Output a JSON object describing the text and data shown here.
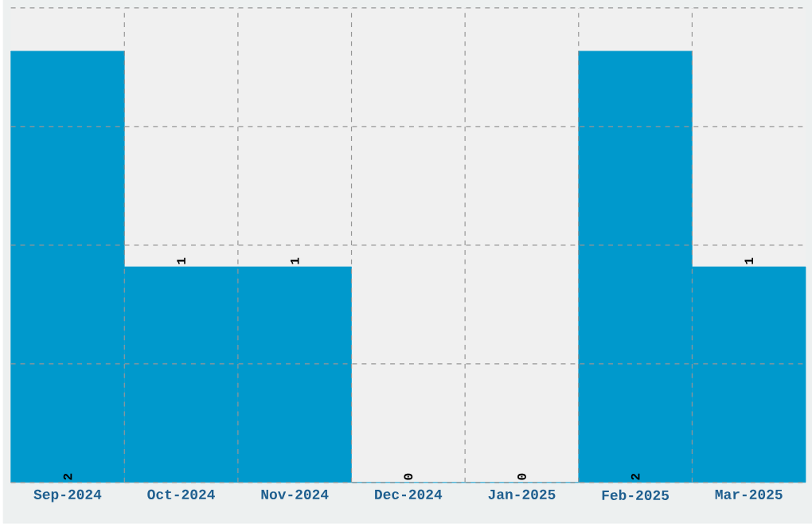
{
  "chart_data": {
    "type": "bar",
    "categories": [
      "Sep-2024",
      "Oct-2024",
      "Nov-2024",
      "Dec-2024",
      "Jan-2025",
      "Feb-2025",
      "Mar-2025"
    ],
    "values": [
      2,
      1,
      1,
      0,
      0,
      2,
      1
    ],
    "color": "#0099cc",
    "ylim": [
      0,
      2.2
    ],
    "yticks": [
      {
        "value": 0,
        "label": null
      },
      {
        "value": 0.55,
        "label": null
      },
      {
        "value": 1.1,
        "label": null
      },
      {
        "value": 1.65,
        "label": null
      },
      {
        "value": 2.2,
        "label": null
      }
    ],
    "tick_labels": "x",
    "data_labels": true,
    "grid": true
  }
}
